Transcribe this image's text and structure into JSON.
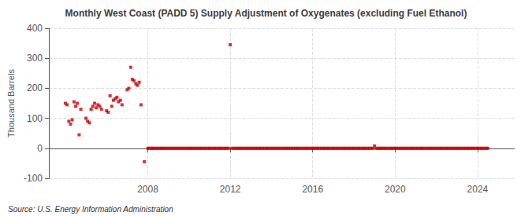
{
  "chart_data": {
    "type": "scatter",
    "title": "Monthly West Coast (PADD 5) Supply Adjustment of Oxygenates (excluding Fuel Ethanol)",
    "ylabel": "Thousand Barrels",
    "annotation": "Source: U.S. Energy Information Administration",
    "color": "#cc0000",
    "marker": "square",
    "grid": true,
    "xlim": [
      2003.2,
      2025.8
    ],
    "xticks": [
      2008,
      2012,
      2016,
      2020,
      2024
    ],
    "ylim": [
      -100,
      400
    ],
    "yticks": [
      -100,
      0,
      100,
      200,
      300,
      400
    ],
    "x": [
      2004.0,
      2004.08,
      2004.17,
      2004.25,
      2004.33,
      2004.42,
      2004.5,
      2004.58,
      2004.67,
      2004.75,
      2005.0,
      2005.08,
      2005.17,
      2005.25,
      2005.33,
      2005.42,
      2005.5,
      2005.58,
      2005.67,
      2005.75,
      2006.0,
      2006.08,
      2006.17,
      2006.25,
      2006.33,
      2006.42,
      2006.5,
      2006.58,
      2006.67,
      2006.75,
      2007.0,
      2007.08,
      2007.17,
      2007.25,
      2007.33,
      2007.42,
      2007.5,
      2007.58,
      2007.67,
      2007.83,
      2008.0,
      2008.08,
      2008.17,
      2008.25,
      2008.33,
      2008.42,
      2008.5,
      2008.58,
      2008.67,
      2008.75,
      2008.83,
      2008.92,
      2009.0,
      2009.08,
      2009.17,
      2009.25,
      2009.33,
      2009.42,
      2009.5,
      2009.58,
      2009.67,
      2009.75,
      2009.83,
      2009.92,
      2010.0,
      2010.08,
      2010.17,
      2010.25,
      2010.33,
      2010.42,
      2010.5,
      2010.58,
      2010.67,
      2010.75,
      2010.83,
      2010.92,
      2011.0,
      2011.08,
      2011.17,
      2011.25,
      2011.33,
      2011.42,
      2011.5,
      2011.58,
      2011.67,
      2011.75,
      2011.83,
      2011.92,
      2012.0,
      2012.08,
      2012.17,
      2012.25,
      2012.33,
      2012.42,
      2012.5,
      2012.58,
      2012.67,
      2012.75,
      2012.83,
      2012.92,
      2013.0,
      2013.08,
      2013.17,
      2013.25,
      2013.33,
      2013.42,
      2013.5,
      2013.58,
      2013.67,
      2013.75,
      2013.83,
      2013.92,
      2014.0,
      2014.08,
      2014.17,
      2014.25,
      2014.33,
      2014.42,
      2014.5,
      2014.58,
      2014.67,
      2014.75,
      2014.83,
      2014.92,
      2015.0,
      2015.08,
      2015.17,
      2015.25,
      2015.33,
      2015.42,
      2015.5,
      2015.58,
      2015.67,
      2015.75,
      2015.83,
      2015.92,
      2016.0,
      2016.08,
      2016.17,
      2016.25,
      2016.33,
      2016.42,
      2016.5,
      2016.58,
      2016.67,
      2016.75,
      2016.83,
      2016.92,
      2017.0,
      2017.08,
      2017.17,
      2017.25,
      2017.33,
      2017.42,
      2017.5,
      2017.58,
      2017.67,
      2017.75,
      2017.83,
      2017.92,
      2018.0,
      2018.08,
      2018.17,
      2018.25,
      2018.33,
      2018.42,
      2018.5,
      2018.58,
      2018.67,
      2018.75,
      2018.83,
      2018.92,
      2019.0,
      2019.08,
      2019.17,
      2019.25,
      2019.33,
      2019.42,
      2019.5,
      2019.58,
      2019.67,
      2019.75,
      2019.83,
      2019.92,
      2020.0,
      2020.08,
      2020.17,
      2020.25,
      2020.33,
      2020.42,
      2020.5,
      2020.58,
      2020.67,
      2020.75,
      2020.83,
      2020.92,
      2021.0,
      2021.08,
      2021.17,
      2021.25,
      2021.33,
      2021.42,
      2021.5,
      2021.58,
      2021.67,
      2021.75,
      2021.83,
      2021.92,
      2022.0,
      2022.08,
      2022.17,
      2022.25,
      2022.33,
      2022.42,
      2022.5,
      2022.58,
      2022.67,
      2022.75,
      2022.83,
      2022.92,
      2023.0,
      2023.08,
      2023.17,
      2023.25,
      2023.33,
      2023.42,
      2023.5,
      2023.58,
      2023.67,
      2023.75,
      2023.83,
      2023.92,
      2024.0,
      2024.08,
      2024.17,
      2024.25,
      2024.33,
      2024.42,
      2024.5
    ],
    "values": [
      150,
      145,
      90,
      80,
      95,
      155,
      140,
      150,
      45,
      130,
      100,
      90,
      85,
      130,
      140,
      150,
      135,
      145,
      140,
      130,
      125,
      120,
      175,
      140,
      160,
      165,
      170,
      155,
      160,
      145,
      195,
      200,
      270,
      230,
      225,
      215,
      210,
      220,
      145,
      -45,
      0,
      0,
      0,
      0,
      0,
      0,
      0,
      0,
      0,
      0,
      0,
      0,
      0,
      0,
      0,
      0,
      0,
      0,
      0,
      0,
      0,
      0,
      0,
      0,
      0,
      0,
      0,
      0,
      0,
      0,
      0,
      0,
      0,
      0,
      0,
      0,
      0,
      0,
      0,
      0,
      0,
      0,
      0,
      0,
      0,
      0,
      0,
      0,
      345,
      0,
      0,
      0,
      0,
      0,
      0,
      0,
      0,
      0,
      0,
      0,
      0,
      0,
      0,
      0,
      0,
      0,
      0,
      0,
      0,
      0,
      0,
      0,
      0,
      0,
      0,
      0,
      0,
      0,
      0,
      0,
      0,
      0,
      0,
      0,
      0,
      0,
      0,
      0,
      0,
      0,
      0,
      0,
      0,
      0,
      0,
      0,
      0,
      0,
      0,
      0,
      0,
      0,
      0,
      0,
      0,
      0,
      0,
      0,
      0,
      0,
      0,
      0,
      0,
      0,
      0,
      0,
      0,
      0,
      0,
      0,
      0,
      0,
      0,
      0,
      0,
      0,
      0,
      0,
      0,
      0,
      0,
      0,
      8,
      0,
      0,
      0,
      0,
      0,
      0,
      0,
      0,
      0,
      0,
      0,
      0,
      0,
      0,
      0,
      0,
      0,
      0,
      0,
      0,
      0,
      0,
      0,
      0,
      0,
      0,
      0,
      0,
      0,
      0,
      0,
      0,
      0,
      0,
      0,
      0,
      0,
      0,
      0,
      0,
      0,
      0,
      0,
      0,
      0,
      0,
      0,
      0,
      0,
      0,
      0,
      0,
      0,
      0,
      0,
      0,
      0,
      0,
      0,
      0,
      0,
      0,
      0,
      0,
      0,
      0
    ]
  }
}
